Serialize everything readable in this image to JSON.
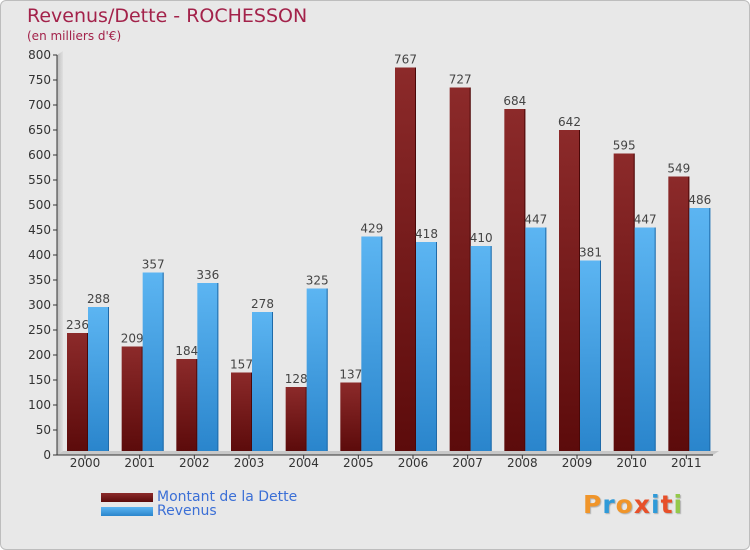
{
  "chart_data": {
    "type": "bar",
    "title": "Revenus/Dette - ROCHESSON",
    "subtitle": "(en milliers d'€)",
    "xlabel": "",
    "ylabel": "",
    "categories": [
      "2000",
      "2001",
      "2002",
      "2003",
      "2004",
      "2005",
      "2006",
      "2007",
      "2008",
      "2009",
      "2010",
      "2011"
    ],
    "series": [
      {
        "name": "Montant de la Dette",
        "color": "#7a1b1b",
        "values": [
          236,
          209,
          184,
          157,
          128,
          137,
          767,
          727,
          684,
          642,
          595,
          549
        ]
      },
      {
        "name": "Revenus",
        "color": "#4aa3e6",
        "values": [
          288,
          357,
          336,
          278,
          325,
          429,
          418,
          410,
          447,
          381,
          447,
          486
        ]
      }
    ],
    "ylim": [
      0,
      800
    ],
    "yticks": [
      0,
      50,
      100,
      150,
      200,
      250,
      300,
      350,
      400,
      450,
      500,
      550,
      600,
      650,
      700,
      750,
      800
    ],
    "grid": false,
    "legend_position": "bottom-left"
  },
  "logo": {
    "text": "Proxiti",
    "colors": [
      "#f0952a",
      "#2f9ad8",
      "#f0952a",
      "#e7502a",
      "#2f9ad8",
      "#e7502a",
      "#94c94b"
    ]
  }
}
